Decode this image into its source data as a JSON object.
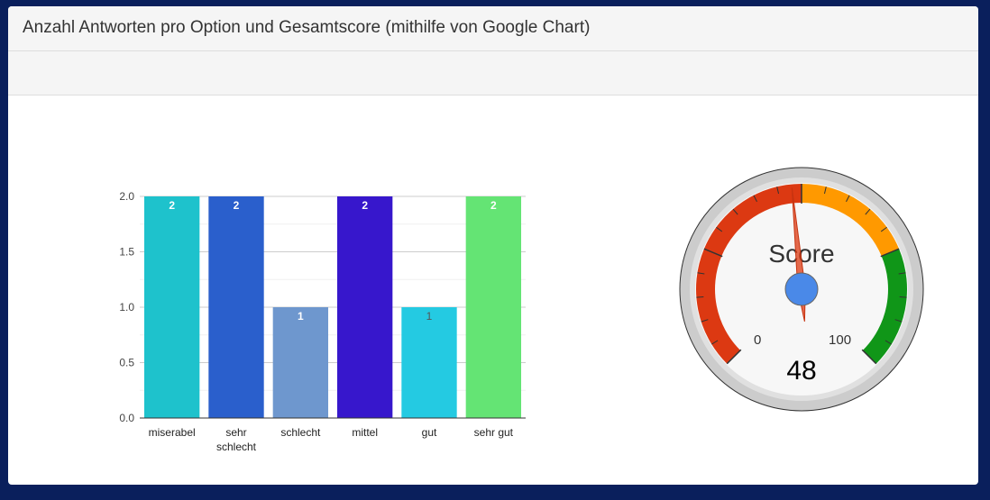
{
  "panel": {
    "title": "Anzahl Antworten pro Option und Gesamtscore (mithilfe von Google Chart)"
  },
  "colors": {
    "page_background": "#0a1f5c",
    "heading_background": "#f5f5f5",
    "gauge_red": "#dc3912",
    "gauge_yellow": "#ff9900",
    "gauge_green": "#109618",
    "gauge_center": "#4a89e8",
    "needle": "#dc3912"
  },
  "chart_data": [
    {
      "type": "bar",
      "categories": [
        "miserabel",
        "sehr schlecht",
        "schlecht",
        "mittel",
        "gut",
        "sehr gut"
      ],
      "values": [
        2,
        2,
        1,
        2,
        1,
        2
      ],
      "bar_colors": [
        "#1ec2cc",
        "#2a5fcc",
        "#6e97ce",
        "#3717cc",
        "#24cae2",
        "#64e474"
      ],
      "data_labels": [
        "2",
        "2",
        "1",
        "2",
        "1",
        "2"
      ],
      "yticks": [
        "0.0",
        "0.5",
        "1.0",
        "1.5",
        "2.0"
      ],
      "ylim": [
        0,
        2
      ],
      "grid": true
    },
    {
      "type": "gauge",
      "label": "Score",
      "value": 48,
      "value_label": "48",
      "min_label": "0",
      "max_label": "100",
      "min": 0,
      "max": 100,
      "bands": [
        {
          "from": 0,
          "to": 50,
          "color": "#dc3912"
        },
        {
          "from": 50,
          "to": 75,
          "color": "#ff9900"
        },
        {
          "from": 75,
          "to": 100,
          "color": "#109618"
        }
      ]
    }
  ]
}
